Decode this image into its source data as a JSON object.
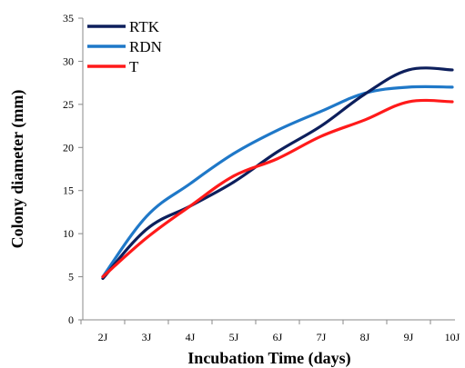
{
  "chart_data": {
    "type": "line",
    "xlabel": "Incubation Time (days)",
    "ylabel": "Colony diameter (mm)",
    "categories": [
      "2J",
      "3J",
      "4J",
      "5J",
      "6J",
      "7J",
      "8J",
      "9J",
      "10J"
    ],
    "ylim": [
      0,
      35
    ],
    "yticks": [
      0,
      5,
      10,
      15,
      20,
      25,
      30,
      35
    ],
    "grid": false,
    "legend_position": "top-left",
    "series": [
      {
        "name": "RTK",
        "color": "#0d1f5c",
        "values": [
          4.8,
          10.5,
          13.2,
          16.0,
          19.5,
          22.5,
          26.2,
          29.0,
          29.0
        ]
      },
      {
        "name": "RDN",
        "color": "#1f78c8",
        "values": [
          5.0,
          12.0,
          15.8,
          19.3,
          22.0,
          24.2,
          26.3,
          27.0,
          27.0
        ]
      },
      {
        "name": "T",
        "color": "#ff1a1a",
        "values": [
          5.0,
          9.5,
          13.2,
          16.7,
          18.7,
          21.3,
          23.2,
          25.3,
          25.3
        ]
      }
    ]
  }
}
